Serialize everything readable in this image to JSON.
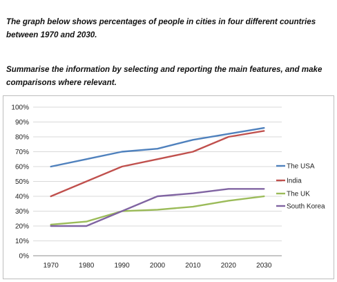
{
  "task": {
    "paragraph1": "The graph below shows percentages of people in cities in four different countries between 1970 and 2030.",
    "paragraph2": "Summarise the information by selecting and reporting the main features, and make comparisons where relevant."
  },
  "chart_data": {
    "type": "line",
    "title": "",
    "xlabel": "",
    "ylabel": "",
    "x": [
      1970,
      1980,
      1990,
      2000,
      2010,
      2020,
      2030
    ],
    "ylim": [
      0,
      100
    ],
    "yticks": [
      0,
      10,
      20,
      30,
      40,
      50,
      60,
      70,
      80,
      90,
      100
    ],
    "ytick_labels": [
      "0%",
      "10%",
      "20%",
      "30%",
      "40%",
      "50%",
      "60%",
      "70%",
      "80%",
      "90%",
      "100%"
    ],
    "xtick_labels": [
      "1970",
      "1980",
      "1990",
      "2000",
      "2010",
      "2020",
      "2030"
    ],
    "grid": "horizontal",
    "legend_position": "right",
    "series": [
      {
        "name": "The USA",
        "color": "#4f81bd",
        "values": [
          60,
          65,
          70,
          72,
          78,
          82,
          86
        ]
      },
      {
        "name": "India",
        "color": "#c0504d",
        "values": [
          40,
          50,
          60,
          65,
          70,
          80,
          84
        ]
      },
      {
        "name": "The UK",
        "color": "#9bbb59",
        "values": [
          21,
          23,
          30,
          31,
          33,
          37,
          40
        ]
      },
      {
        "name": "South Korea",
        "color": "#8064a2",
        "values": [
          20,
          20,
          30,
          40,
          42,
          45,
          45
        ]
      }
    ]
  }
}
